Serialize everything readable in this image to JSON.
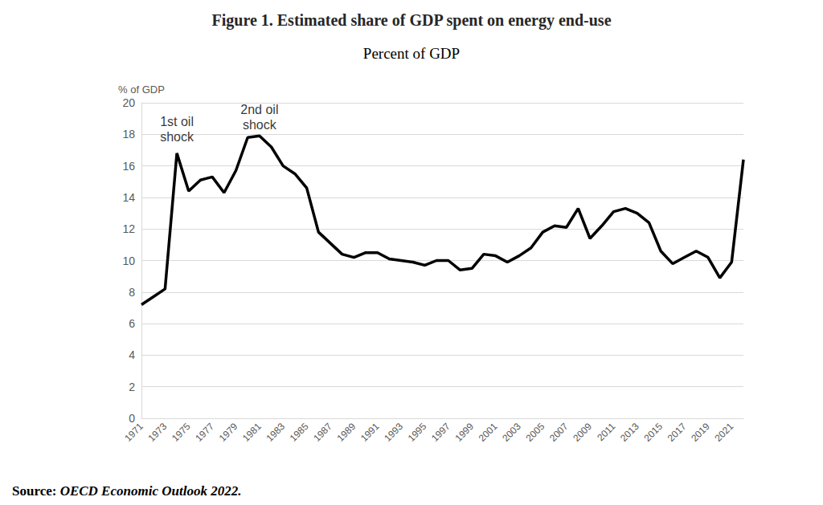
{
  "chart_data": {
    "type": "line",
    "title": "Figure 1. Estimated share of GDP spent on energy end-use",
    "subtitle": "Percent of GDP",
    "y_label": "% of GDP",
    "source": "Source: OECD Economic Outlook 2022.",
    "x": [
      1971,
      1972,
      1973,
      1974,
      1975,
      1976,
      1977,
      1978,
      1979,
      1980,
      1981,
      1982,
      1983,
      1984,
      1985,
      1986,
      1987,
      1988,
      1989,
      1990,
      1991,
      1992,
      1993,
      1994,
      1995,
      1996,
      1997,
      1998,
      1999,
      2000,
      2001,
      2002,
      2003,
      2004,
      2005,
      2006,
      2007,
      2008,
      2009,
      2010,
      2011,
      2012,
      2013,
      2014,
      2015,
      2016,
      2017,
      2018,
      2019,
      2020,
      2021,
      2022
    ],
    "values": [
      7.2,
      7.7,
      8.2,
      16.8,
      14.4,
      15.1,
      15.3,
      14.3,
      15.7,
      17.8,
      17.9,
      17.2,
      16.0,
      15.5,
      14.6,
      11.8,
      11.1,
      10.4,
      10.2,
      10.5,
      10.5,
      10.1,
      10.0,
      9.9,
      9.7,
      10.0,
      10.0,
      9.4,
      9.5,
      10.4,
      10.3,
      9.9,
      10.3,
      10.8,
      11.8,
      12.2,
      12.1,
      13.3,
      11.4,
      12.2,
      13.1,
      13.3,
      13.0,
      12.4,
      10.6,
      9.8,
      10.2,
      10.6,
      10.2,
      8.9,
      9.9,
      16.4
    ],
    "color": "#000000",
    "line_style": "solid",
    "marker": "none",
    "xlim": [
      1971,
      2022
    ],
    "xticks": [
      1971,
      1973,
      1975,
      1977,
      1979,
      1981,
      1983,
      1985,
      1987,
      1989,
      1991,
      1993,
      1995,
      1997,
      1999,
      2001,
      2003,
      2005,
      2007,
      2009,
      2011,
      2013,
      2015,
      2017,
      2019,
      2021
    ],
    "ylim": [
      0,
      20
    ],
    "yticks": [
      0,
      2,
      4,
      6,
      8,
      10,
      12,
      14,
      16,
      18,
      20
    ],
    "grid": true,
    "annotations": [
      {
        "text": "1st oil\nshock",
        "x": 1974,
        "y": 18.3
      },
      {
        "text": "2nd oil\nshock",
        "x": 1981,
        "y": 19.1
      }
    ]
  }
}
